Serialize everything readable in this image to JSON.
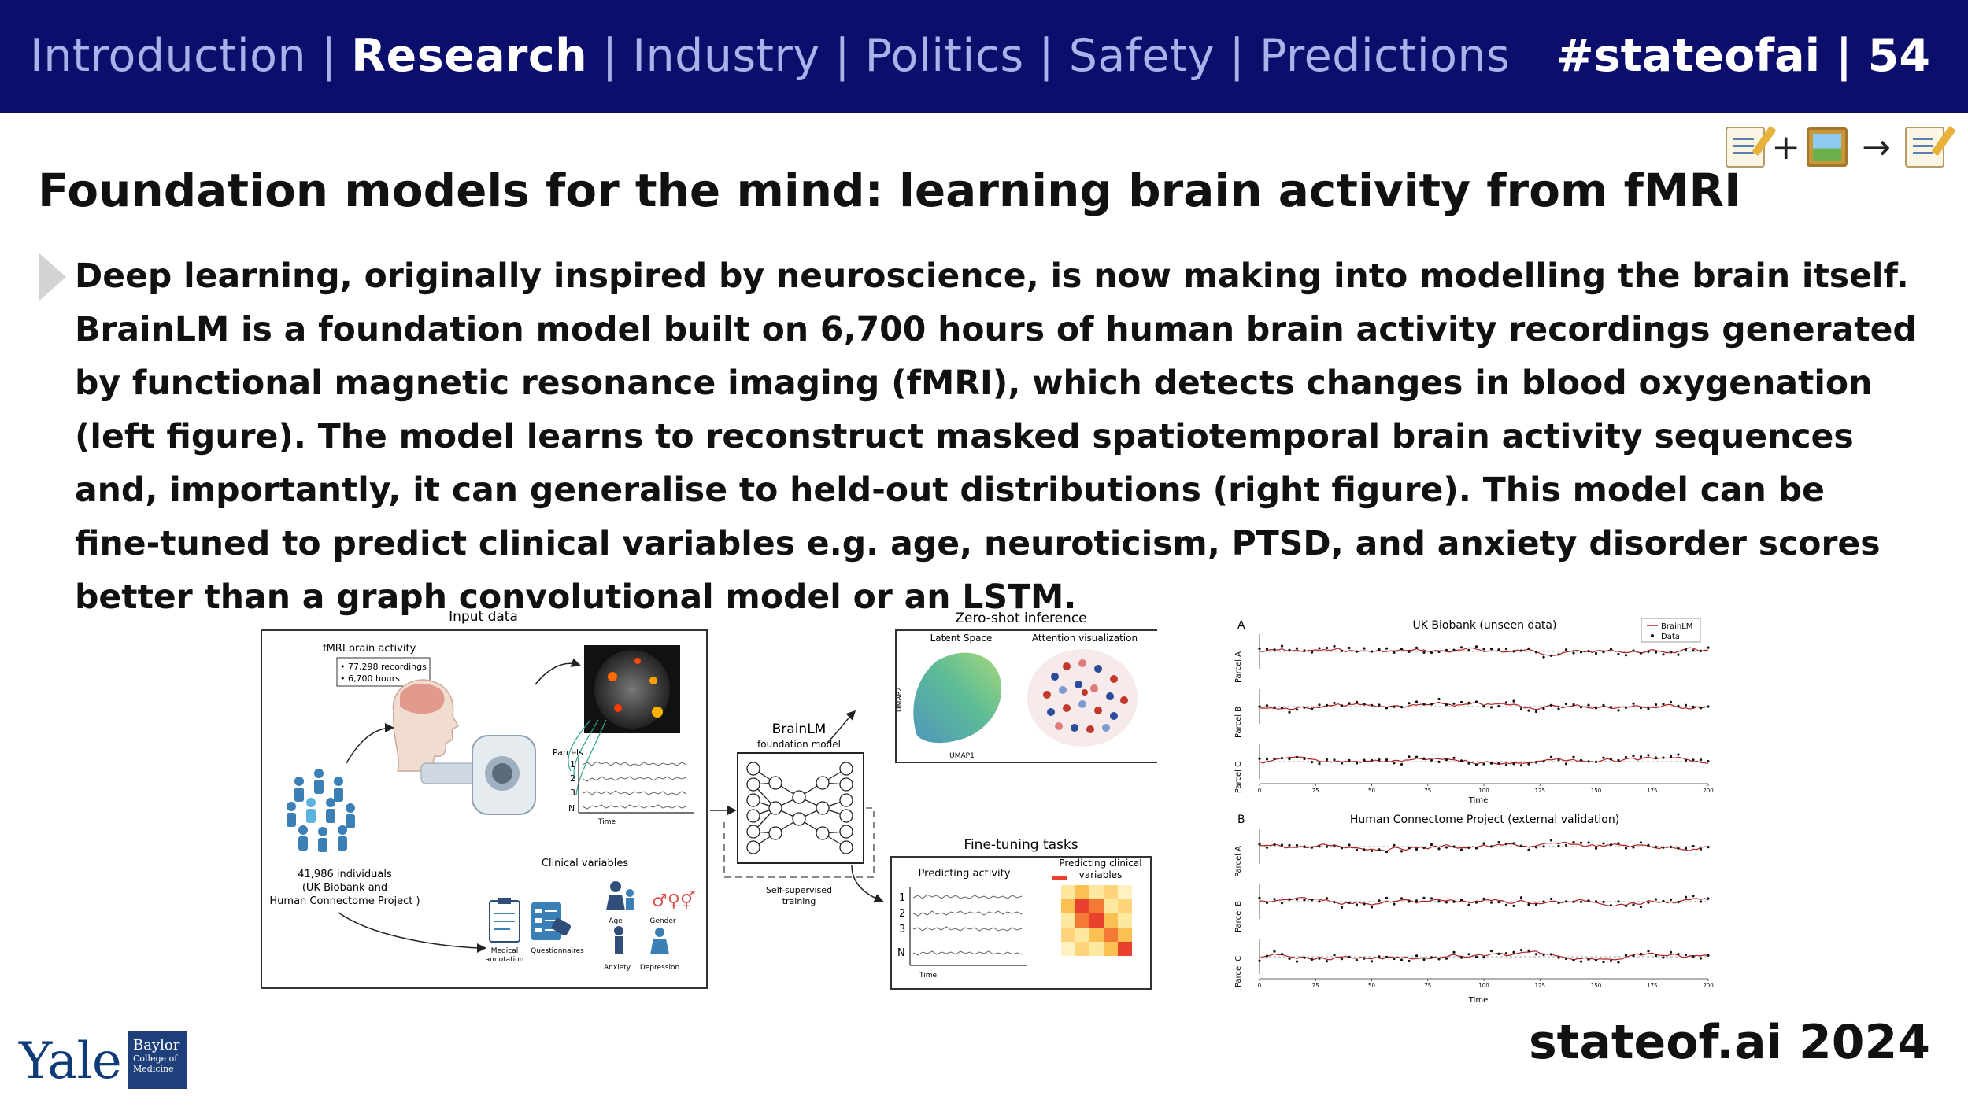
{
  "header": {
    "nav": [
      {
        "label": "Introduction",
        "active": false
      },
      {
        "label": "Research",
        "active": true
      },
      {
        "label": "Industry",
        "active": false
      },
      {
        "label": "Politics",
        "active": false
      },
      {
        "label": "Safety",
        "active": false
      },
      {
        "label": "Predictions",
        "active": false
      }
    ],
    "separator": "|",
    "brand": "#stateofai | 54"
  },
  "modality": {
    "icons": [
      "memo-icon",
      "picture-icon",
      "memo-icon"
    ],
    "plus": "+",
    "arrow": "→"
  },
  "slide": {
    "title": "Foundation models for the mind: learning brain activity from fMRI",
    "body": "Deep learning, originally inspired by neuroscience, is now making into modelling the brain itself. BrainLM is a foundation model built on 6,700 hours of human brain activity recordings generated by functional magnetic resonance imaging (fMRI), which detects changes in blood oxygenation (left figure). The model learns to reconstruct masked spatiotemporal brain activity sequences and, importantly, it can generalise to held-out distributions (right figure). This model can be fine-tuned to predict clinical variables e.g. age, neuroticism, PTSD, and anxiety disorder scores better than a graph convolutional model or an LSTM."
  },
  "left_figure": {
    "input_title": "Input data",
    "fmri_label": "fMRI brain activity",
    "fmri_bullets": [
      "• 77,298 recordings",
      "• 6,700 hours"
    ],
    "individuals": [
      "41,986 individuals",
      "(UK Biobank and",
      "Human Connectome Project )"
    ],
    "parcels_label": "Parcels",
    "parcel_numbers": [
      "1",
      "2",
      "3",
      "N"
    ],
    "time_label": "Time",
    "clinical_label": "Clinical variables",
    "clinical_items": [
      "Medical",
      "annotation",
      "Questionnaires",
      "Age",
      "Gender",
      "Anxiety",
      "Depression"
    ],
    "model_name": "BrainLM",
    "model_sub": "foundation model",
    "ssl_label": [
      "Self-supervised",
      "training"
    ],
    "zero_shot": "Zero-shot inference",
    "latent_space": "Latent Space",
    "attention_viz": "Attention visualization",
    "umap1": "UMAP1",
    "umap2": "UMAP2",
    "finetune_title": "Fine-tuning tasks",
    "predict_activity": "Predicting activity",
    "predict_clinical": [
      "Predicting clinical",
      "variables"
    ],
    "ft_numbers": [
      "1",
      "2",
      "3",
      "N"
    ],
    "ft_time": "Time",
    "gender_symbols": "♂♀⚥"
  },
  "right_figure": {
    "panel_a_letter": "A",
    "panel_a_title": "UK Biobank (unseen data)",
    "panel_b_letter": "B",
    "panel_b_title": "Human Connectome Project (external validation)",
    "parcels": [
      "Parcel A",
      "Parcel B",
      "Parcel C"
    ],
    "legend": [
      "BrainLM",
      "Data"
    ],
    "x_ticks": [
      "0",
      "25",
      "50",
      "75",
      "100",
      "125",
      "150",
      "175",
      "200"
    ],
    "x_label": "Time",
    "colors": {
      "prediction": "#b22222",
      "data": "#111111",
      "zero_line": "#888888"
    }
  },
  "footer": {
    "brand": "stateof.ai 2024",
    "yale": "Yale",
    "baylor": [
      "Baylor",
      "College of",
      "Medicine"
    ]
  }
}
